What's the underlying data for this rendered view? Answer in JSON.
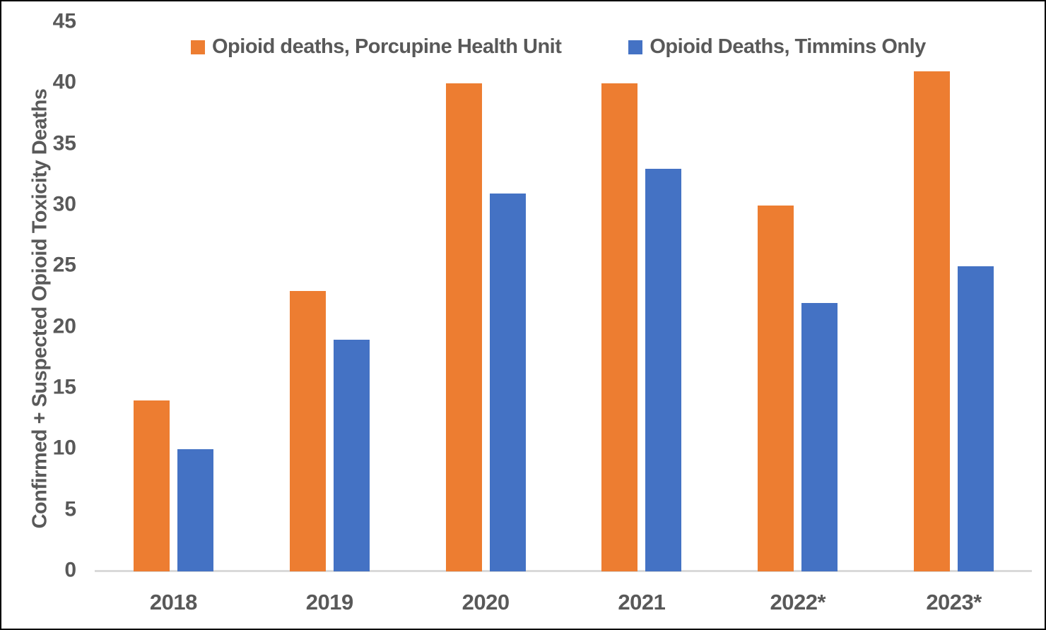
{
  "chart_data": {
    "type": "bar",
    "categories": [
      "2018",
      "2019",
      "2020",
      "2021",
      "2022*",
      "2023*"
    ],
    "series": [
      {
        "name": "Opioid deaths, Porcupine Health Unit",
        "key": "porcupine-health-unit",
        "color": "#ED7D31",
        "values": [
          14,
          23,
          40,
          40,
          30,
          41
        ]
      },
      {
        "name": "Opioid Deaths, Timmins Only",
        "key": "timmins-only",
        "color": "#4472C4",
        "values": [
          10,
          19,
          31,
          33,
          22,
          25
        ]
      }
    ],
    "ylabel": "Confirmed + Suspected Opioid Toxicity Deaths",
    "ylim": [
      0,
      45
    ],
    "yticks": [
      0,
      5,
      10,
      15,
      20,
      25,
      30,
      35,
      40,
      45
    ],
    "legend_position": "top",
    "grid": false,
    "text_color": "#595959",
    "axis_line_color": "#D9D9D9",
    "background_color": "#FFFFFF",
    "border_color": "#000000"
  }
}
